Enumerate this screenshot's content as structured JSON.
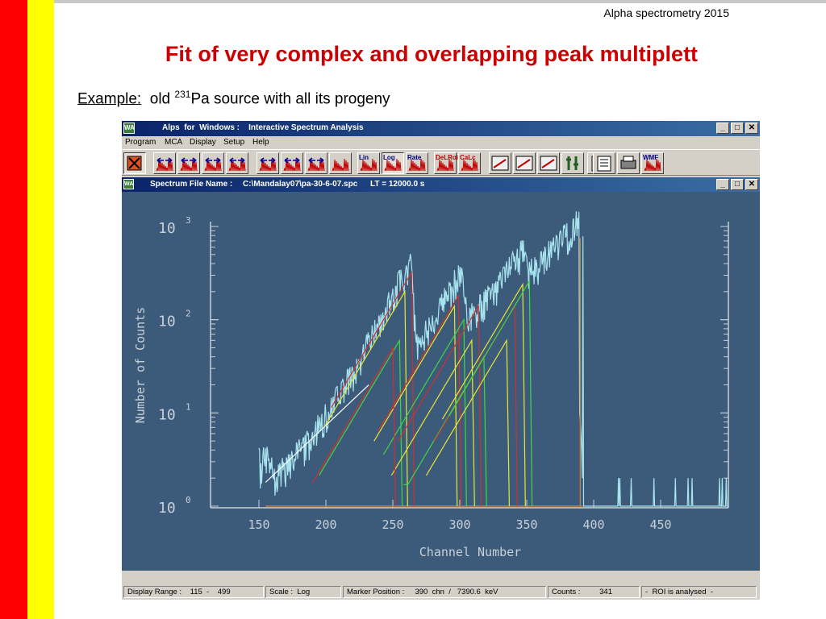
{
  "header": {
    "conference": "Alpha spectrometry 2015"
  },
  "slide": {
    "title": "Fit of very complex and overlapping peak multiplett",
    "example_label": "Example:",
    "example_pre": "old",
    "example_sup": "231",
    "example_post": "Pa source with all its progeny"
  },
  "window": {
    "app_icon": "WA",
    "title": "Alps  for  Windows :    Interactive Spectrum Analysis",
    "controls": [
      "_",
      "□",
      "✕"
    ],
    "menu": [
      "Program",
      "MCA",
      "Display",
      "Setup",
      "Help"
    ]
  },
  "toolbar": {
    "labels": {
      "lin": "Lin",
      "log": "Log",
      "rate": "Rate",
      "delroi": "DeLRoi",
      "calc": "CaLc",
      "wmf": "WMF"
    },
    "icons": [
      "exit-icon",
      "zoom-in-icon",
      "zoom-out-icon",
      "find-peak-icon",
      "spectrum-icon",
      "shift-left-icon",
      "shift-right-icon",
      "expand-up-icon",
      "spectrum-full-icon",
      "lin-scale-icon",
      "log-scale-icon",
      "rate-icon",
      "delete-roi-icon",
      "calculate-icon",
      "energy-calib-icon",
      "efficiency-calib-icon",
      "monitor-icon",
      "shape-icon",
      "tools-icon",
      "report-icon",
      "print-icon",
      "wmf-export-icon"
    ]
  },
  "child_window": {
    "icon": "WA",
    "label": "Spectrum File Name :",
    "file": "C:\\Mandalay07\\pa-30-6-07.spc",
    "lt": "LT = 12000.0 s"
  },
  "chart_data": {
    "type": "line",
    "xlabel": "Channel Number",
    "ylabel": "Number of Counts",
    "x_ticks": [
      150,
      200,
      250,
      300,
      350,
      400,
      450
    ],
    "xlim": [
      115,
      499
    ],
    "y_scale": "log",
    "y_tick_labels": [
      {
        "base": "10",
        "exp": "3"
      },
      {
        "base": "10",
        "exp": "2"
      },
      {
        "base": "10",
        "exp": "1"
      },
      {
        "base": "10",
        "exp": "0"
      }
    ],
    "ylim": [
      1,
      1000
    ],
    "colors": {
      "background": "#3c5a7a",
      "spectrum": "#a8e4ee",
      "fit_yellow": "#e8e830",
      "fit_green": "#40d840",
      "fit_red": "#d03030",
      "marker": "#c08040",
      "axis": "#c8d0d8"
    },
    "spectrum_peaks": [
      {
        "channel": 262,
        "counts": 360
      },
      {
        "channel": 300,
        "counts": 230
      },
      {
        "channel": 347,
        "counts": 280
      },
      {
        "channel": 389,
        "counts": 340
      }
    ],
    "fitted_components": [
      {
        "color": "yellow",
        "peak_channel": 259,
        "peak_counts": 200
      },
      {
        "color": "red",
        "peak_channel": 264,
        "peak_counts": 320
      },
      {
        "color": "green",
        "peak_channel": 255,
        "peak_counts": 60
      },
      {
        "color": "yellow",
        "peak_channel": 296,
        "peak_counts": 140
      },
      {
        "color": "red",
        "peak_channel": 299,
        "peak_counts": 180
      },
      {
        "color": "green",
        "peak_channel": 303,
        "peak_counts": 100
      },
      {
        "color": "yellow",
        "peak_channel": 309,
        "peak_counts": 60
      },
      {
        "color": "red",
        "peak_channel": 314,
        "peak_counts": 140
      },
      {
        "color": "green",
        "peak_channel": 318,
        "peak_counts": 40
      },
      {
        "color": "yellow",
        "peak_channel": 335,
        "peak_counts": 60
      },
      {
        "color": "red",
        "peak_channel": 341,
        "peak_counts": 140
      },
      {
        "color": "yellow",
        "peak_channel": 347,
        "peak_counts": 240
      },
      {
        "color": "green",
        "peak_channel": 352,
        "peak_counts": 260
      },
      {
        "color": "red",
        "peak_channel": 250,
        "peak_counts": 50
      }
    ],
    "marker_channel": 390,
    "marker_counts": 750
  },
  "status": {
    "display_range": "Display Range :    115  -    499",
    "scale": "Scale :  Log",
    "marker": "Marker Position :     390  chn  /   7390.6  keV",
    "counts": "Counts :         341",
    "roi": "-  ROI is analysed  -"
  }
}
